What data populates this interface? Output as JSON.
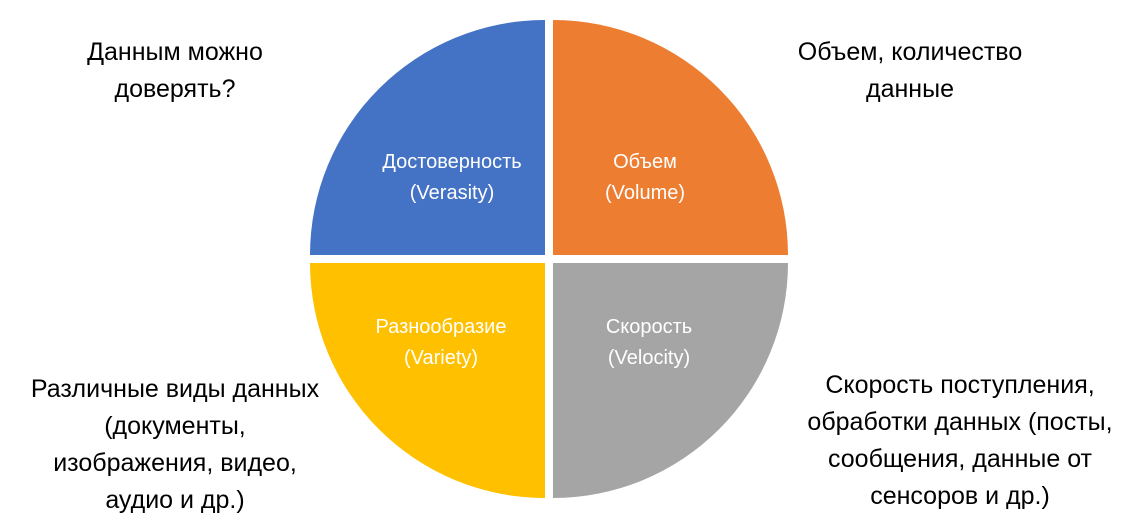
{
  "quadrants": [
    {
      "id": "veracity",
      "title": "Достоверность",
      "subtitle": "(Verasity)",
      "color": "#4472C4",
      "caption": [
        "Данным можно",
        "доверять?"
      ]
    },
    {
      "id": "volume",
      "title": "Объем",
      "subtitle": "(Volume)",
      "color": "#ED7D31",
      "caption": [
        "Объем, количество",
        "данные"
      ]
    },
    {
      "id": "variety",
      "title": "Разнообразие",
      "subtitle": "(Variety)",
      "color": "#FFC000",
      "caption": [
        "Различные виды данных",
        "(документы,",
        "изображения, видео,",
        "аудио и др.)"
      ]
    },
    {
      "id": "velocity",
      "title": "Скорость",
      "subtitle": "(Velocity)",
      "color": "#A5A5A5",
      "caption": [
        "Скорость поступления,",
        "обработки данных (посты,",
        "сообщения, данные от",
        "сенсоров и др.)"
      ]
    }
  ]
}
